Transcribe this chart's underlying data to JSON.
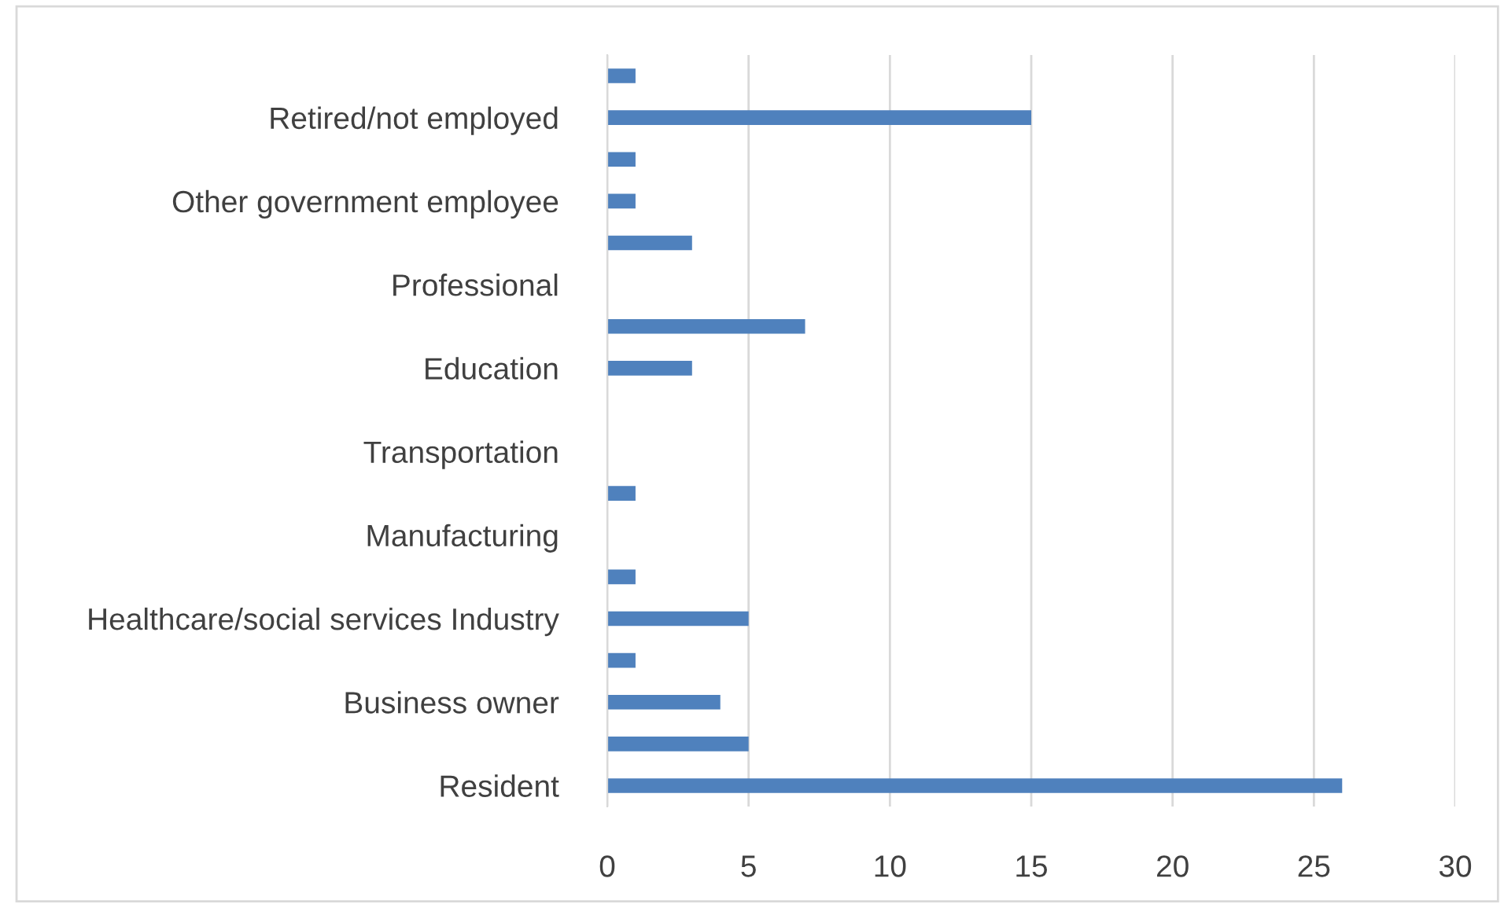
{
  "chart_data": {
    "type": "bar",
    "orientation": "horizontal",
    "categories": [
      null,
      "Retired/not employed",
      null,
      "Other government employee",
      null,
      "Professional",
      null,
      "Education",
      null,
      "Transportation",
      null,
      "Manufacturing",
      null,
      "Healthcare/social services Industry",
      null,
      "Business owner",
      null,
      "Resident"
    ],
    "values": [
      1,
      15,
      1,
      1,
      3,
      0,
      7,
      3,
      0,
      0,
      1,
      0,
      1,
      5,
      1,
      4,
      5,
      26
    ],
    "color": "#4f81bd",
    "xlim": [
      0,
      30
    ],
    "xticks": [
      0,
      5,
      10,
      15,
      20,
      25,
      30
    ],
    "grid": "x"
  }
}
